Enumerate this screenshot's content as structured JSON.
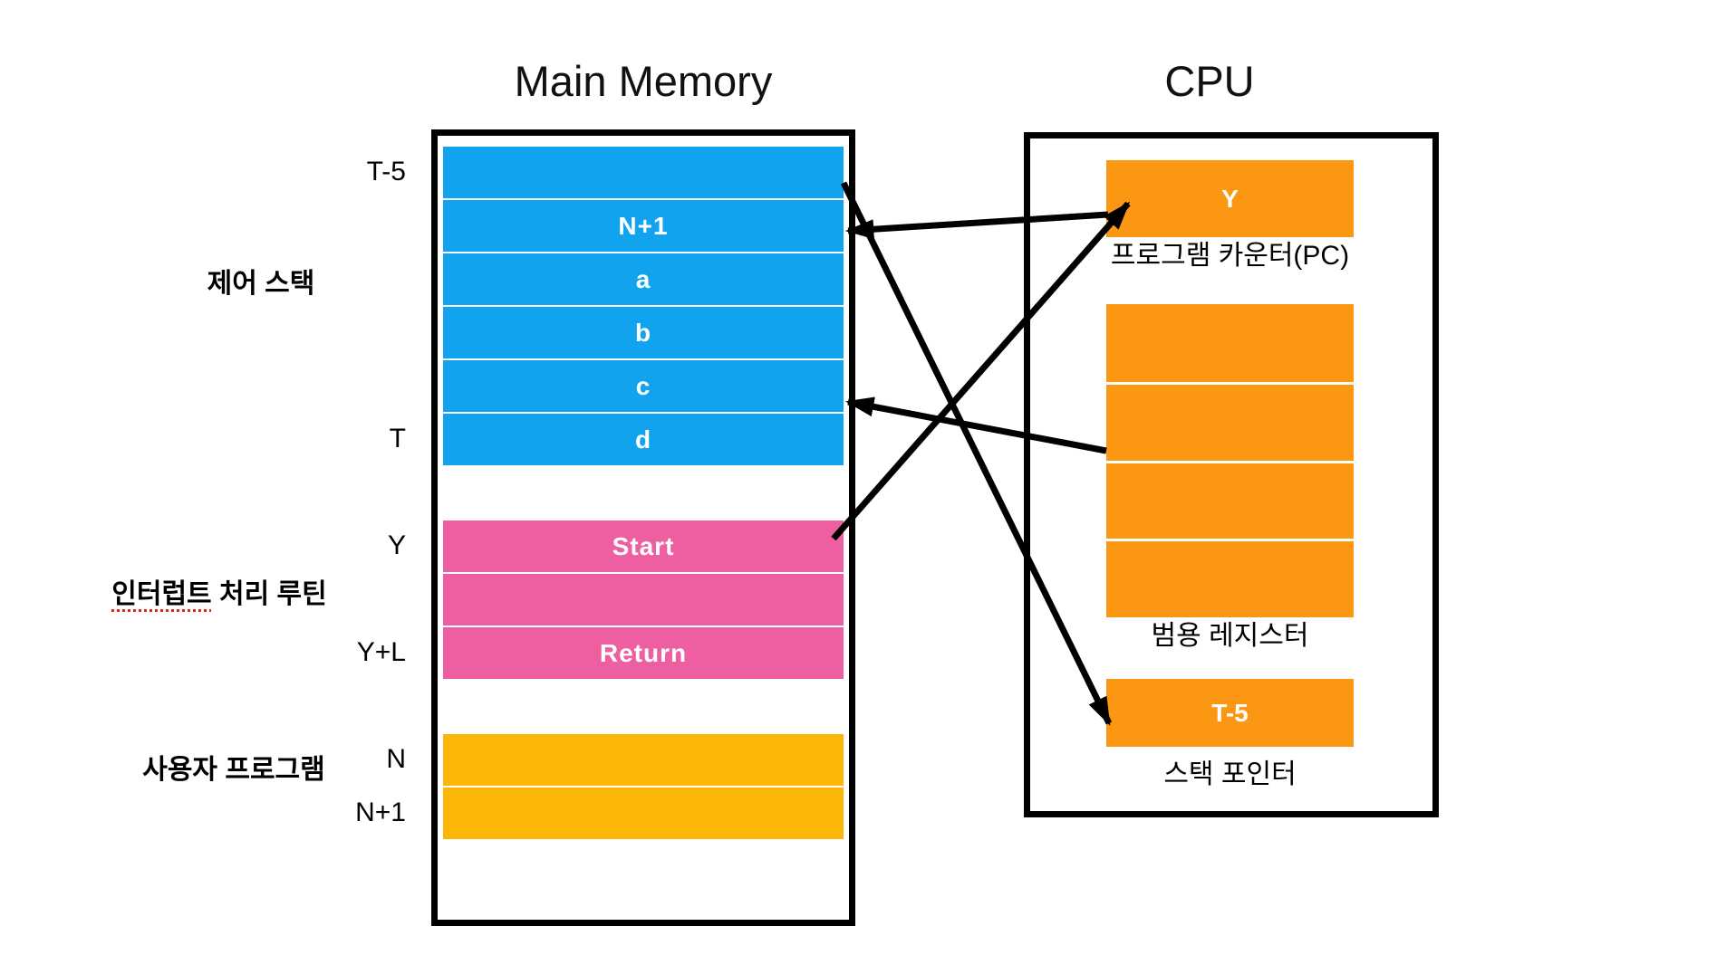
{
  "titles": {
    "memory": "Main Memory",
    "cpu": "CPU"
  },
  "memory": {
    "rows": [
      {
        "address": "T-5",
        "label": "",
        "color": "blue"
      },
      {
        "address": "",
        "label": "N+1",
        "color": "blue"
      },
      {
        "address": "",
        "label": "a",
        "color": "blue"
      },
      {
        "address": "",
        "label": "b",
        "color": "blue"
      },
      {
        "address": "",
        "label": "c",
        "color": "blue"
      },
      {
        "address": "T",
        "label": "d",
        "color": "blue"
      },
      {
        "address": "",
        "label": "...",
        "color": "black"
      },
      {
        "address": "Y",
        "label": "Start",
        "color": "pink"
      },
      {
        "address": "",
        "label": "",
        "color": "pink"
      },
      {
        "address": "Y+L",
        "label": "Return",
        "color": "pink"
      },
      {
        "address": "",
        "label": "...",
        "color": "black"
      },
      {
        "address": "N",
        "label": "",
        "color": "yellow"
      },
      {
        "address": "N+1",
        "label": "",
        "color": "yellow"
      },
      {
        "address": "",
        "label": "...",
        "color": "black"
      }
    ],
    "section_labels": {
      "control_stack": "제어 스택",
      "interrupt_word": "인터럽트",
      "interrupt_rest": " 처리 루틴",
      "user_program": "사용자 프로그램"
    }
  },
  "cpu": {
    "pc": {
      "value": "Y",
      "caption": "프로그램 카운터(PC)"
    },
    "general_registers": {
      "count": 4,
      "caption": "범용 레지스터"
    },
    "sp": {
      "value": "T-5",
      "caption": "스택 포인터"
    }
  },
  "colors": {
    "blue": "#12A3EF",
    "pink": "#EE5FA1",
    "yellow": "#FBB607",
    "orange": "#FB9713",
    "row_text": "#FFFFFF",
    "arrow": "#000000",
    "misspell_underline": "#E0251B"
  }
}
